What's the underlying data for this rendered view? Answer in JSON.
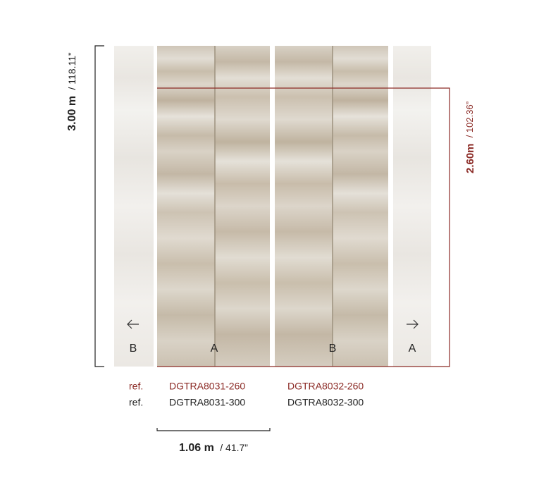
{
  "dimensions": {
    "height_full": {
      "metric": "3.00 m",
      "imperial": "/ 118.11”"
    },
    "height_cut": {
      "metric": "2.60m",
      "imperial": "/ 102.36”"
    },
    "width": {
      "metric": "1.06 m",
      "imperial": "/ 41.7”"
    }
  },
  "panels": [
    "B",
    "A",
    "B",
    "A"
  ],
  "refs": [
    {
      "label": "ref.",
      "codes": [
        "DGTRA8031-260",
        "DGTRA8032-260"
      ]
    },
    {
      "label": "ref.",
      "codes": [
        "DGTRA8031-300",
        "DGTRA8032-300"
      ]
    }
  ]
}
